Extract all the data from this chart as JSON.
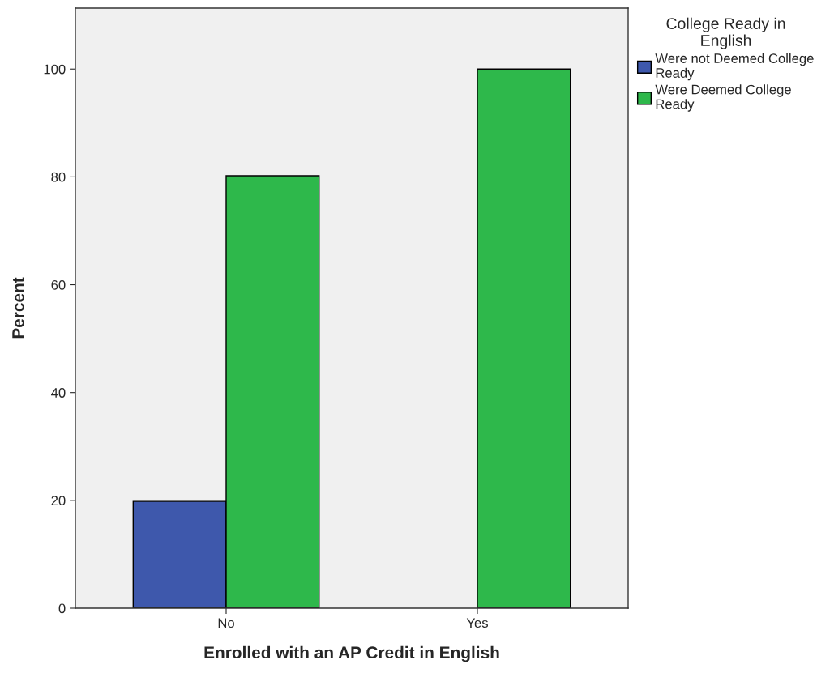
{
  "chart_data": {
    "type": "bar",
    "xlabel": "Enrolled with an AP Credit in English",
    "ylabel": "Percent",
    "legend_title": "College Ready in English",
    "categories": [
      "No",
      "Yes"
    ],
    "series": [
      {
        "name": "Were not Deemed College Ready",
        "color": "#3e58ac",
        "values": [
          19.8,
          null
        ]
      },
      {
        "name": "Were Deemed College Ready",
        "color": "#2eb84b",
        "values": [
          80.2,
          100
        ]
      }
    ],
    "ylim": [
      0,
      111.3
    ],
    "yticks": [
      0,
      20,
      40,
      60,
      80,
      100
    ],
    "grid": false,
    "legend": "top right"
  }
}
